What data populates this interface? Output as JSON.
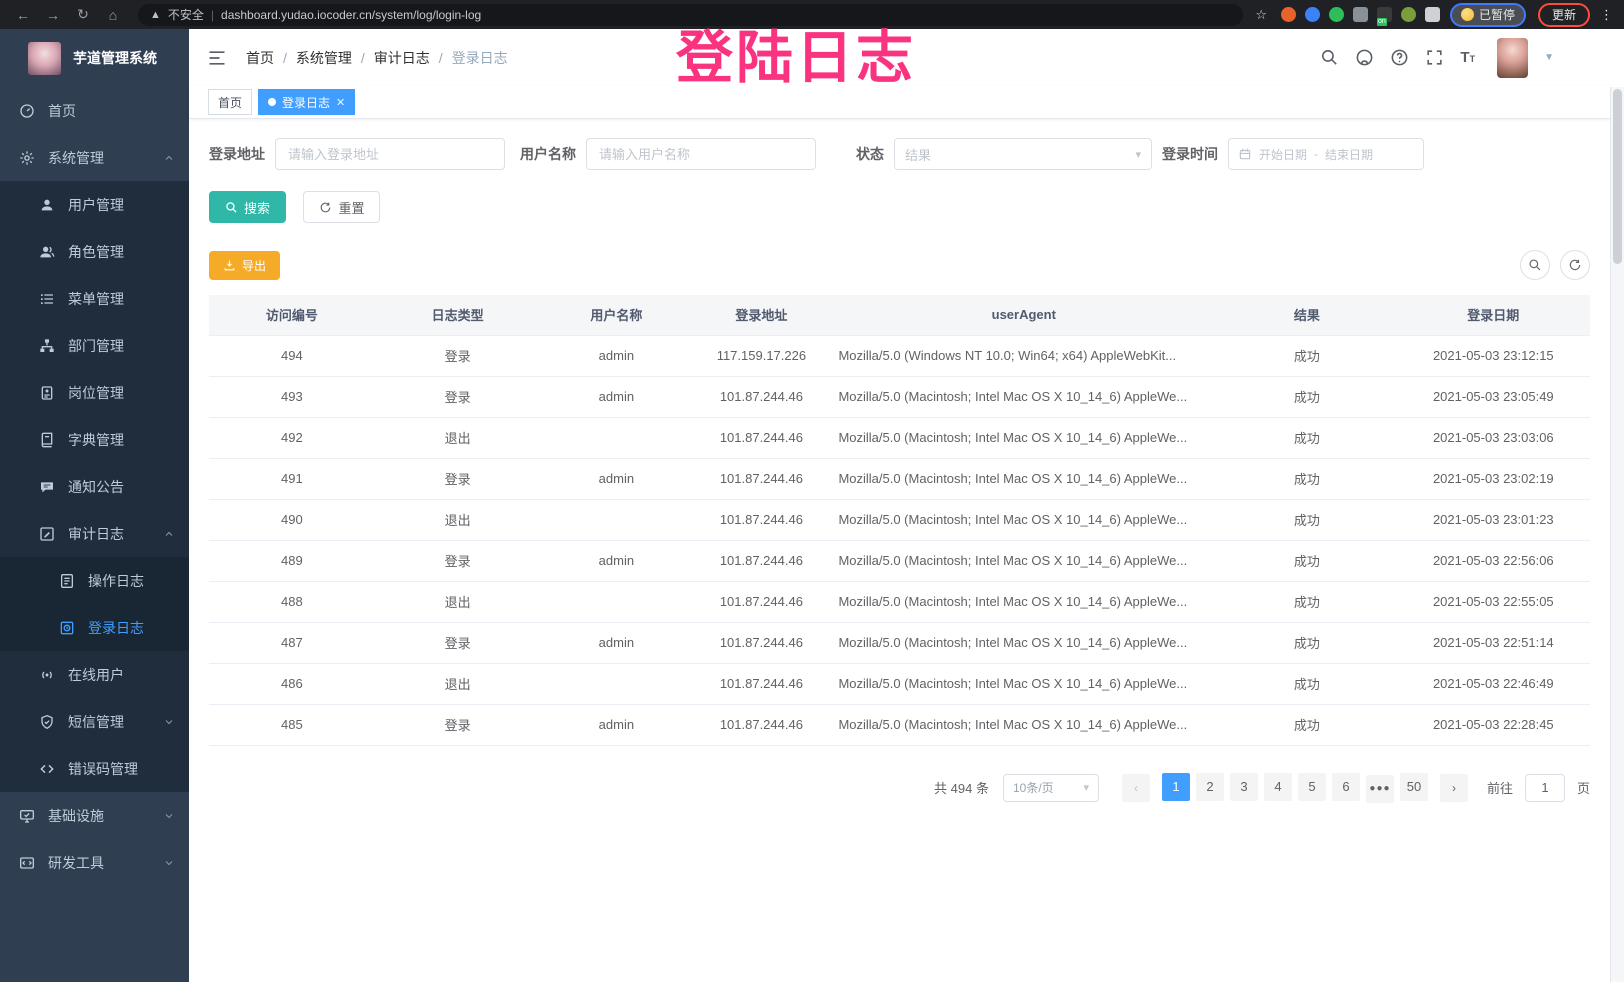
{
  "colors": {
    "accent": "#409EFF",
    "teal": "#2FB8A8",
    "amber": "#F5AB28",
    "pink": "#FA3380",
    "sidebar": "#303E52",
    "submenu": "#1F2D3D",
    "submenu-deep": "#192634"
  },
  "browser": {
    "security_label": "不安全",
    "url": "dashboard.yudao.iocoder.cn/system/log/login-log",
    "paused_label": "已暂停",
    "update_label": "更新",
    "extensions": [
      {
        "name": "extension-orange-icon",
        "color": "#E8622C",
        "shape": "circle"
      },
      {
        "name": "extension-blue-gem-icon",
        "color": "#3B82F6",
        "shape": "circle"
      },
      {
        "name": "extension-green-heart-icon",
        "color": "#2EBD59",
        "shape": "circle"
      },
      {
        "name": "extension-grey-blue-icon",
        "color": "#7e8augment",
        "shape": "square"
      },
      {
        "name": "extension-tampermonkey-icon",
        "color": "#3a3a3a",
        "shape": "square",
        "badge": "on"
      },
      {
        "name": "extension-olive-icon",
        "color": "#7A9E3B",
        "shape": "circle"
      },
      {
        "name": "extension-puzzle-icon",
        "color": "#cfd1d4",
        "shape": "square"
      }
    ]
  },
  "annotation": {
    "text": "登陆日志"
  },
  "sidebar": {
    "title": "芋道管理系统",
    "items": [
      {
        "label": "首页",
        "icon": "dashboard-icon",
        "level": 1
      },
      {
        "label": "系统管理",
        "icon": "gear-icon",
        "level": 1,
        "caret": "up"
      },
      {
        "label": "用户管理",
        "icon": "user-icon",
        "level": 2
      },
      {
        "label": "角色管理",
        "icon": "role-icon",
        "level": 2
      },
      {
        "label": "菜单管理",
        "icon": "menu-list-icon",
        "level": 2
      },
      {
        "label": "部门管理",
        "icon": "org-tree-icon",
        "level": 2
      },
      {
        "label": "岗位管理",
        "icon": "badge-icon",
        "level": 2
      },
      {
        "label": "字典管理",
        "icon": "dict-book-icon",
        "level": 2
      },
      {
        "label": "通知公告",
        "icon": "announcement-icon",
        "level": 2
      },
      {
        "label": "审计日志",
        "icon": "audit-log-icon",
        "level": 2,
        "caret": "up"
      },
      {
        "label": "操作日志",
        "icon": "operation-log-icon",
        "level": 3
      },
      {
        "label": "登录日志",
        "icon": "login-log-icon",
        "level": 3,
        "active": true
      },
      {
        "label": "在线用户",
        "icon": "online-user-icon",
        "level": 2
      },
      {
        "label": "短信管理",
        "icon": "sms-shield-icon",
        "level": 2,
        "caret": "down"
      },
      {
        "label": "错误码管理",
        "icon": "error-code-icon",
        "level": 2
      },
      {
        "label": "基础设施",
        "icon": "infra-monitor-icon",
        "level": 1,
        "caret": "down"
      },
      {
        "label": "研发工具",
        "icon": "dev-tool-icon",
        "level": 1,
        "caret": "down"
      }
    ]
  },
  "header": {
    "breadcrumb": [
      "首页",
      "系统管理",
      "审计日志",
      "登录日志"
    ]
  },
  "tags": [
    {
      "label": "首页",
      "active": false,
      "closable": false
    },
    {
      "label": "登录日志",
      "active": true,
      "closable": true
    }
  ],
  "filters": {
    "login_address": {
      "label": "登录地址",
      "placeholder": "请输入登录地址",
      "value": ""
    },
    "username": {
      "label": "用户名称",
      "placeholder": "请输入用户名称",
      "value": ""
    },
    "status": {
      "label": "状态",
      "placeholder": "结果"
    },
    "login_time": {
      "label": "登录时间",
      "start_placeholder": "开始日期",
      "separator": "-",
      "end_placeholder": "结束日期"
    }
  },
  "actions": {
    "search_label": "搜索",
    "reset_label": "重置",
    "export_label": "导出"
  },
  "table": {
    "headers": [
      "访问编号",
      "日志类型",
      "用户名称",
      "登录地址",
      "userAgent",
      "结果",
      "登录日期"
    ],
    "rows": [
      {
        "id": "494",
        "type": "登录",
        "username": "admin",
        "ip": "117.159.17.226",
        "user_agent": "Mozilla/5.0 (Windows NT 10.0; Win64; x64) AppleWebKit...",
        "result": "成功",
        "date": "2021-05-03 23:12:15"
      },
      {
        "id": "493",
        "type": "登录",
        "username": "admin",
        "ip": "101.87.244.46",
        "user_agent": "Mozilla/5.0 (Macintosh; Intel Mac OS X 10_14_6) AppleWe...",
        "result": "成功",
        "date": "2021-05-03 23:05:49"
      },
      {
        "id": "492",
        "type": "退出",
        "username": "",
        "ip": "101.87.244.46",
        "user_agent": "Mozilla/5.0 (Macintosh; Intel Mac OS X 10_14_6) AppleWe...",
        "result": "成功",
        "date": "2021-05-03 23:03:06"
      },
      {
        "id": "491",
        "type": "登录",
        "username": "admin",
        "ip": "101.87.244.46",
        "user_agent": "Mozilla/5.0 (Macintosh; Intel Mac OS X 10_14_6) AppleWe...",
        "result": "成功",
        "date": "2021-05-03 23:02:19"
      },
      {
        "id": "490",
        "type": "退出",
        "username": "",
        "ip": "101.87.244.46",
        "user_agent": "Mozilla/5.0 (Macintosh; Intel Mac OS X 10_14_6) AppleWe...",
        "result": "成功",
        "date": "2021-05-03 23:01:23"
      },
      {
        "id": "489",
        "type": "登录",
        "username": "admin",
        "ip": "101.87.244.46",
        "user_agent": "Mozilla/5.0 (Macintosh; Intel Mac OS X 10_14_6) AppleWe...",
        "result": "成功",
        "date": "2021-05-03 22:56:06"
      },
      {
        "id": "488",
        "type": "退出",
        "username": "",
        "ip": "101.87.244.46",
        "user_agent": "Mozilla/5.0 (Macintosh; Intel Mac OS X 10_14_6) AppleWe...",
        "result": "成功",
        "date": "2021-05-03 22:55:05"
      },
      {
        "id": "487",
        "type": "登录",
        "username": "admin",
        "ip": "101.87.244.46",
        "user_agent": "Mozilla/5.0 (Macintosh; Intel Mac OS X 10_14_6) AppleWe...",
        "result": "成功",
        "date": "2021-05-03 22:51:14"
      },
      {
        "id": "486",
        "type": "退出",
        "username": "",
        "ip": "101.87.244.46",
        "user_agent": "Mozilla/5.0 (Macintosh; Intel Mac OS X 10_14_6) AppleWe...",
        "result": "成功",
        "date": "2021-05-03 22:46:49"
      },
      {
        "id": "485",
        "type": "登录",
        "username": "admin",
        "ip": "101.87.244.46",
        "user_agent": "Mozilla/5.0 (Macintosh; Intel Mac OS X 10_14_6) AppleWe...",
        "result": "成功",
        "date": "2021-05-03 22:28:45"
      }
    ]
  },
  "pagination": {
    "total": "共 494 条",
    "page_size": "10条/页",
    "pages": [
      "1",
      "2",
      "3",
      "4",
      "5",
      "6",
      "...",
      "50"
    ],
    "active_page": "1",
    "goto_label": "前往",
    "goto_value": "1",
    "page_label": "页"
  }
}
